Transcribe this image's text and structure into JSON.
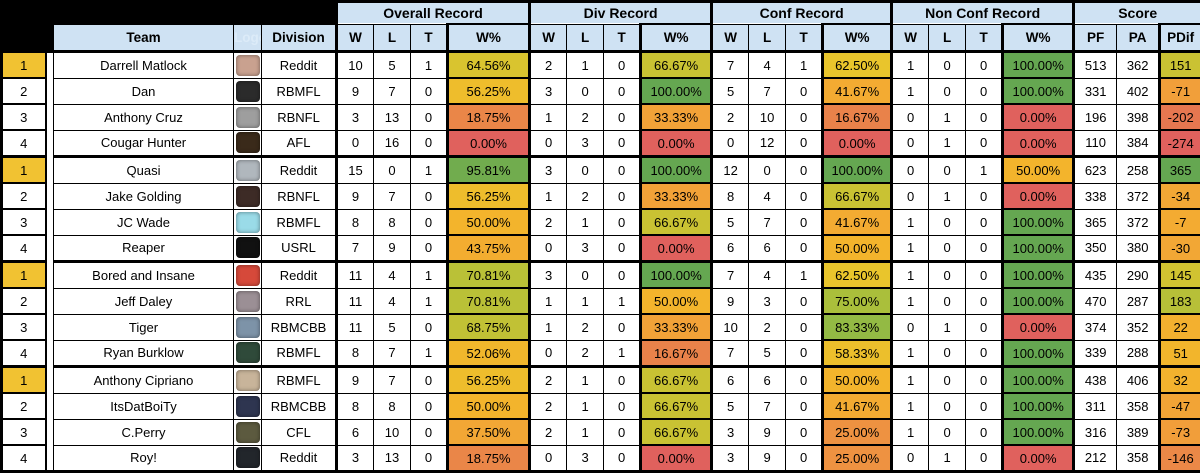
{
  "table": {
    "columns": {
      "team": "Team",
      "logo": "Logo",
      "division": "Division"
    },
    "groups": [
      {
        "label": "Overall Record"
      },
      {
        "label": "Div Record"
      },
      {
        "label": "Conf Record"
      },
      {
        "label": "Non Conf Record"
      },
      {
        "label": "Score"
      }
    ],
    "sub": {
      "w": "W",
      "l": "L",
      "t": "T",
      "pct": "W%",
      "pf": "PF",
      "pa": "PA",
      "pdif": "PDif"
    },
    "colors": {
      "header_bg": "#cfe2f3",
      "rank1_bg": "#f1c232",
      "grid": "#000000",
      "scale_red": "#e0615d",
      "scale_amber": "#f3b42c",
      "scale_green": "#65a751"
    },
    "rows": [
      {
        "rank": "1",
        "team": "Darrell Matlock",
        "division": "Reddit",
        "logo_color": "#c9a18f",
        "overall": {
          "w": "10",
          "l": "5",
          "t": "1",
          "pct": "64.56%"
        },
        "div": {
          "w": "2",
          "l": "1",
          "t": "0",
          "pct": "66.67%"
        },
        "conf": {
          "w": "7",
          "l": "4",
          "t": "1",
          "pct": "62.50%"
        },
        "nonconf": {
          "w": "1",
          "l": "0",
          "t": "0",
          "pct": "100.00%"
        },
        "pf": "513",
        "pa": "362",
        "pdif": "151"
      },
      {
        "rank": "2",
        "team": "Dan",
        "division": "RBMFL",
        "logo_color": "#2b2b2b",
        "overall": {
          "w": "9",
          "l": "7",
          "t": "0",
          "pct": "56.25%"
        },
        "div": {
          "w": "3",
          "l": "0",
          "t": "0",
          "pct": "100.00%"
        },
        "conf": {
          "w": "5",
          "l": "7",
          "t": "0",
          "pct": "41.67%"
        },
        "nonconf": {
          "w": "1",
          "l": "0",
          "t": "0",
          "pct": "100.00%"
        },
        "pf": "331",
        "pa": "402",
        "pdif": "-71"
      },
      {
        "rank": "3",
        "team": "Anthony Cruz",
        "division": "RBNFL",
        "logo_color": "#9e9e9e",
        "overall": {
          "w": "3",
          "l": "13",
          "t": "0",
          "pct": "18.75%"
        },
        "div": {
          "w": "1",
          "l": "2",
          "t": "0",
          "pct": "33.33%"
        },
        "conf": {
          "w": "2",
          "l": "10",
          "t": "0",
          "pct": "16.67%"
        },
        "nonconf": {
          "w": "0",
          "l": "1",
          "t": "0",
          "pct": "0.00%"
        },
        "pf": "196",
        "pa": "398",
        "pdif": "-202"
      },
      {
        "rank": "4",
        "team": "Cougar Hunter",
        "division": "AFL",
        "logo_color": "#3a2a1a",
        "overall": {
          "w": "0",
          "l": "16",
          "t": "0",
          "pct": "0.00%"
        },
        "div": {
          "w": "0",
          "l": "3",
          "t": "0",
          "pct": "0.00%"
        },
        "conf": {
          "w": "0",
          "l": "12",
          "t": "0",
          "pct": "0.00%"
        },
        "nonconf": {
          "w": "0",
          "l": "1",
          "t": "0",
          "pct": "0.00%"
        },
        "pf": "110",
        "pa": "384",
        "pdif": "-274"
      },
      {
        "rank": "1",
        "team": "Quasi",
        "division": "Reddit",
        "logo_color": "#b0b7bd",
        "overall": {
          "w": "15",
          "l": "0",
          "t": "1",
          "pct": "95.81%"
        },
        "div": {
          "w": "3",
          "l": "0",
          "t": "0",
          "pct": "100.00%"
        },
        "conf": {
          "w": "12",
          "l": "0",
          "t": "0",
          "pct": "100.00%"
        },
        "nonconf": {
          "w": "0",
          "l": "0",
          "t": "1",
          "pct": "50.00%"
        },
        "pf": "623",
        "pa": "258",
        "pdif": "365"
      },
      {
        "rank": "2",
        "team": "Jake Golding",
        "division": "RBNFL",
        "logo_color": "#3d2b26",
        "overall": {
          "w": "9",
          "l": "7",
          "t": "0",
          "pct": "56.25%"
        },
        "div": {
          "w": "1",
          "l": "2",
          "t": "0",
          "pct": "33.33%"
        },
        "conf": {
          "w": "8",
          "l": "4",
          "t": "0",
          "pct": "66.67%"
        },
        "nonconf": {
          "w": "0",
          "l": "1",
          "t": "0",
          "pct": "0.00%"
        },
        "pf": "338",
        "pa": "372",
        "pdif": "-34"
      },
      {
        "rank": "3",
        "team": "JC Wade",
        "division": "RBMFL",
        "logo_color": "#9adbe8",
        "overall": {
          "w": "8",
          "l": "8",
          "t": "0",
          "pct": "50.00%"
        },
        "div": {
          "w": "2",
          "l": "1",
          "t": "0",
          "pct": "66.67%"
        },
        "conf": {
          "w": "5",
          "l": "7",
          "t": "0",
          "pct": "41.67%"
        },
        "nonconf": {
          "w": "1",
          "l": "0",
          "t": "0",
          "pct": "100.00%"
        },
        "pf": "365",
        "pa": "372",
        "pdif": "-7"
      },
      {
        "rank": "4",
        "team": "Reaper",
        "division": "USRL",
        "logo_color": "#111111",
        "overall": {
          "w": "7",
          "l": "9",
          "t": "0",
          "pct": "43.75%"
        },
        "div": {
          "w": "0",
          "l": "3",
          "t": "0",
          "pct": "0.00%"
        },
        "conf": {
          "w": "6",
          "l": "6",
          "t": "0",
          "pct": "50.00%"
        },
        "nonconf": {
          "w": "1",
          "l": "0",
          "t": "0",
          "pct": "100.00%"
        },
        "pf": "350",
        "pa": "380",
        "pdif": "-30"
      },
      {
        "rank": "1",
        "team": "Bored and Insane",
        "division": "Reddit",
        "logo_color": "#d6493a",
        "overall": {
          "w": "11",
          "l": "4",
          "t": "1",
          "pct": "70.81%"
        },
        "div": {
          "w": "3",
          "l": "0",
          "t": "0",
          "pct": "100.00%"
        },
        "conf": {
          "w": "7",
          "l": "4",
          "t": "1",
          "pct": "62.50%"
        },
        "nonconf": {
          "w": "1",
          "l": "0",
          "t": "0",
          "pct": "100.00%"
        },
        "pf": "435",
        "pa": "290",
        "pdif": "145"
      },
      {
        "rank": "2",
        "team": "Jeff Daley",
        "division": "RRL",
        "logo_color": "#9b8f95",
        "overall": {
          "w": "11",
          "l": "4",
          "t": "1",
          "pct": "70.81%"
        },
        "div": {
          "w": "1",
          "l": "1",
          "t": "1",
          "pct": "50.00%"
        },
        "conf": {
          "w": "9",
          "l": "3",
          "t": "0",
          "pct": "75.00%"
        },
        "nonconf": {
          "w": "1",
          "l": "0",
          "t": "0",
          "pct": "100.00%"
        },
        "pf": "470",
        "pa": "287",
        "pdif": "183"
      },
      {
        "rank": "3",
        "team": "Tiger",
        "division": "RBMCBB",
        "logo_color": "#7d93a8",
        "overall": {
          "w": "11",
          "l": "5",
          "t": "0",
          "pct": "68.75%"
        },
        "div": {
          "w": "1",
          "l": "2",
          "t": "0",
          "pct": "33.33%"
        },
        "conf": {
          "w": "10",
          "l": "2",
          "t": "0",
          "pct": "83.33%"
        },
        "nonconf": {
          "w": "0",
          "l": "1",
          "t": "0",
          "pct": "0.00%"
        },
        "pf": "374",
        "pa": "352",
        "pdif": "22"
      },
      {
        "rank": "4",
        "team": "Ryan Burklow",
        "division": "RBMFL",
        "logo_color": "#2f4a3a",
        "overall": {
          "w": "8",
          "l": "7",
          "t": "1",
          "pct": "52.06%"
        },
        "div": {
          "w": "0",
          "l": "2",
          "t": "1",
          "pct": "16.67%"
        },
        "conf": {
          "w": "7",
          "l": "5",
          "t": "0",
          "pct": "58.33%"
        },
        "nonconf": {
          "w": "1",
          "l": "0",
          "t": "0",
          "pct": "100.00%"
        },
        "pf": "339",
        "pa": "288",
        "pdif": "51"
      },
      {
        "rank": "1",
        "team": "Anthony Cipriano",
        "division": "RBMFL",
        "logo_color": "#c8b49a",
        "overall": {
          "w": "9",
          "l": "7",
          "t": "0",
          "pct": "56.25%"
        },
        "div": {
          "w": "2",
          "l": "1",
          "t": "0",
          "pct": "66.67%"
        },
        "conf": {
          "w": "6",
          "l": "6",
          "t": "0",
          "pct": "50.00%"
        },
        "nonconf": {
          "w": "1",
          "l": "0",
          "t": "0",
          "pct": "100.00%"
        },
        "pf": "438",
        "pa": "406",
        "pdif": "32"
      },
      {
        "rank": "2",
        "team": "ItsDatBoiTy",
        "division": "RBMCBB",
        "logo_color": "#2e3550",
        "overall": {
          "w": "8",
          "l": "8",
          "t": "0",
          "pct": "50.00%"
        },
        "div": {
          "w": "2",
          "l": "1",
          "t": "0",
          "pct": "66.67%"
        },
        "conf": {
          "w": "5",
          "l": "7",
          "t": "0",
          "pct": "41.67%"
        },
        "nonconf": {
          "w": "1",
          "l": "0",
          "t": "0",
          "pct": "100.00%"
        },
        "pf": "311",
        "pa": "358",
        "pdif": "-47"
      },
      {
        "rank": "3",
        "team": "C.Perry",
        "division": "CFL",
        "logo_color": "#5c5a3f",
        "overall": {
          "w": "6",
          "l": "10",
          "t": "0",
          "pct": "37.50%"
        },
        "div": {
          "w": "2",
          "l": "1",
          "t": "0",
          "pct": "66.67%"
        },
        "conf": {
          "w": "3",
          "l": "9",
          "t": "0",
          "pct": "25.00%"
        },
        "nonconf": {
          "w": "1",
          "l": "0",
          "t": "0",
          "pct": "100.00%"
        },
        "pf": "316",
        "pa": "389",
        "pdif": "-73"
      },
      {
        "rank": "4",
        "team": "Roy!",
        "division": "Reddit",
        "logo_color": "#22262b",
        "overall": {
          "w": "3",
          "l": "13",
          "t": "0",
          "pct": "18.75%"
        },
        "div": {
          "w": "0",
          "l": "3",
          "t": "0",
          "pct": "0.00%"
        },
        "conf": {
          "w": "3",
          "l": "9",
          "t": "0",
          "pct": "25.00%"
        },
        "nonconf": {
          "w": "0",
          "l": "1",
          "t": "0",
          "pct": "0.00%"
        },
        "pf": "212",
        "pa": "358",
        "pdif": "-146"
      }
    ]
  }
}
